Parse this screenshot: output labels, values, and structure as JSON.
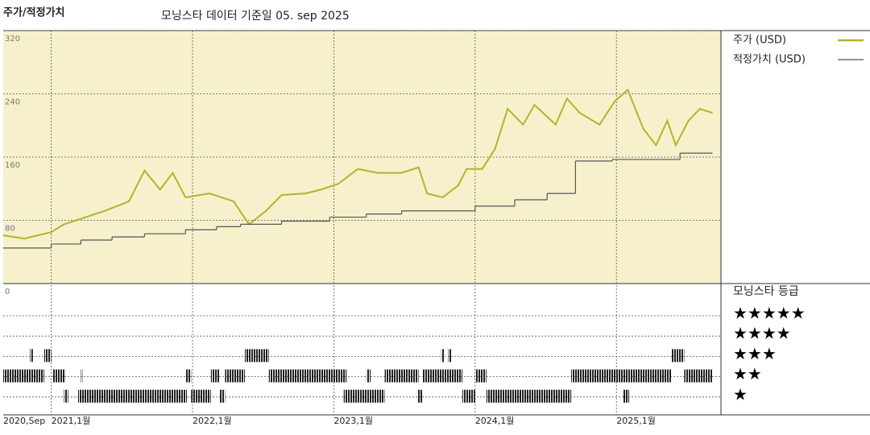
{
  "chart_data": [
    {
      "type": "line",
      "title": "주가/적정가치",
      "subtitle": "모닝스타 데이터 기준일 05. sep 2025",
      "xlim": [
        2020.66,
        2025.74
      ],
      "xticks": [
        {
          "value": 2020.66,
          "label": "2020,Sep"
        },
        {
          "value": 2021,
          "label": "2021,1월"
        },
        {
          "value": 2022,
          "label": "2022,1월"
        },
        {
          "value": 2023,
          "label": "2023,1월"
        },
        {
          "value": 2024,
          "label": "2024,1월"
        },
        {
          "value": 2025,
          "label": "2025,1월"
        }
      ],
      "ylim": [
        0,
        320
      ],
      "yticks": [
        80,
        160,
        240,
        320
      ],
      "grid": true,
      "legend": "right",
      "series": [
        {
          "name": "주가 (USD)",
          "color": "#b4b42a",
          "style": "line",
          "x": [
            2020.66,
            2020.81,
            2021.0,
            2021.09,
            2021.21,
            2021.38,
            2021.55,
            2021.66,
            2021.77,
            2021.86,
            2021.95,
            2022.12,
            2022.29,
            2022.4,
            2022.52,
            2022.63,
            2022.8,
            2022.91,
            2023.03,
            2023.17,
            2023.31,
            2023.48,
            2023.6,
            2023.66,
            2023.77,
            2023.88,
            2023.94,
            2024.05,
            2024.14,
            2024.23,
            2024.34,
            2024.42,
            2024.57,
            2024.65,
            2024.74,
            2024.88,
            2024.99,
            2025.08,
            2025.19,
            2025.28,
            2025.36,
            2025.42,
            2025.51,
            2025.59,
            2025.68
          ],
          "values": [
            61,
            57,
            65,
            75,
            82,
            92,
            104,
            143,
            119,
            140,
            109,
            114,
            104,
            75,
            92,
            112,
            114,
            119,
            126,
            145,
            140,
            140,
            147,
            114,
            109,
            124,
            145,
            145,
            170,
            221,
            201,
            226,
            201,
            234,
            216,
            201,
            231,
            245,
            196,
            175,
            206,
            175,
            206,
            221,
            216
          ]
        },
        {
          "name": "적정가치 (USD)",
          "color": "#555555",
          "style": "step",
          "x": [
            2020.66,
            2021.0,
            2021.21,
            2021.43,
            2021.66,
            2021.95,
            2022.17,
            2022.34,
            2022.63,
            2022.97,
            2023.23,
            2023.48,
            2024.0,
            2024.28,
            2024.51,
            2024.71,
            2024.97,
            2025.45
          ],
          "values": [
            45,
            50,
            55,
            59,
            63,
            68,
            72,
            75,
            79,
            84,
            88,
            92,
            98,
            106,
            114,
            155,
            157,
            165
          ]
        }
      ]
    },
    {
      "type": "timeline",
      "title": "모닝스타 등급",
      "yticks": [
        0
      ],
      "categories": [
        "★★★★★",
        "★★★★",
        "★★★",
        "★★",
        "★"
      ],
      "periods": {
        "start": [
          2020.85,
          2020.95,
          2022.37,
          2023.76,
          2023.81,
          2025.39,
          2020.66,
          2021.01,
          2021.21,
          2021.95,
          2022.13,
          2022.23,
          2022.54,
          2023.23,
          2023.36,
          2023.63,
          2024.0,
          2024.68,
          2025.48,
          2021.09,
          2021.19,
          2021.99,
          2022.19,
          2023.07,
          2023.59,
          2023.91,
          2024.08,
          2025.05
        ],
        "end": [
          2020.87,
          2021.0,
          2022.54,
          2023.78,
          2023.83,
          2025.48,
          2020.95,
          2021.1,
          2021.22,
          2021.99,
          2022.19,
          2022.37,
          2023.09,
          2023.26,
          2023.6,
          2023.91,
          2024.08,
          2025.39,
          2025.68,
          2021.12,
          2021.96,
          2022.13,
          2022.23,
          2023.36,
          2023.63,
          2024.0,
          2024.68,
          2025.09
        ],
        "rating": [
          3,
          3,
          3,
          3,
          3,
          3,
          2,
          2,
          2,
          2,
          2,
          2,
          2,
          2,
          2,
          2,
          2,
          2,
          2,
          1,
          1,
          1,
          1,
          1,
          1,
          1,
          1,
          1
        ]
      }
    }
  ]
}
